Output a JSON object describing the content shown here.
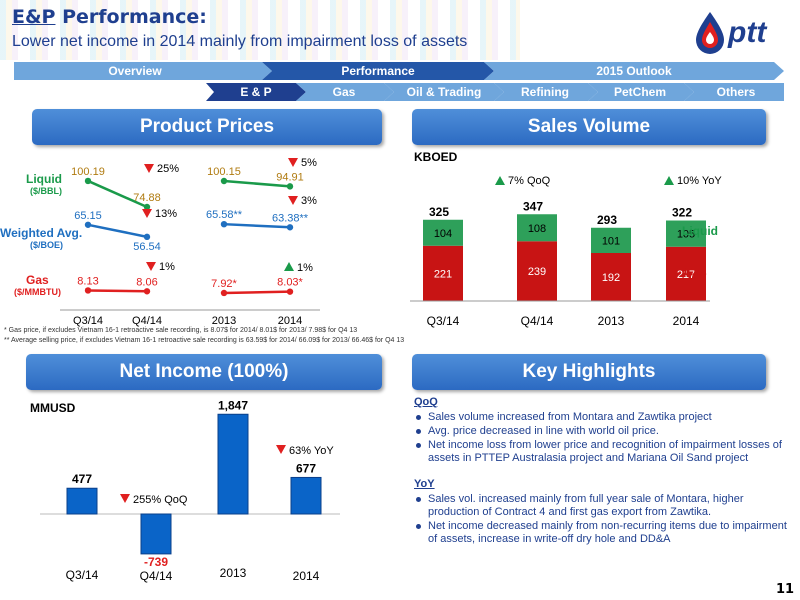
{
  "header": {
    "title_prefix": "E&P",
    "title_rest": " Performance:",
    "subtitle": "Lower net income in 2014 mainly from impairment loss of assets",
    "logo_text": "ptt"
  },
  "nav_top": [
    "Overview",
    "Performance",
    "2015 Outlook"
  ],
  "nav_sub": [
    "E & P",
    "Gas",
    "Oil & Trading",
    "Refining",
    "PetChem",
    "Others"
  ],
  "sections": {
    "product_prices": "Product Prices",
    "sales_volume": "Sales Volume",
    "net_income": "Net Income (100%)",
    "key_highlights": "Key Highlights"
  },
  "colors": {
    "liquid": "#1a9a4a",
    "weighted": "#1f6fc0",
    "gas": "#e02020",
    "bar_green": "#2ea05a",
    "bar_red": "#c81414",
    "bar_blue": "#0a64c8"
  },
  "chart_data": [
    {
      "type": "line",
      "categories": [
        "Q3/14",
        "Q4/14",
        "2013",
        "2014"
      ],
      "series": [
        {
          "name": "Liquid ($/BBL)",
          "values": [
            100.19,
            74.88,
            100.15,
            94.91
          ],
          "labels": [
            "100.19",
            "74.88",
            "100.15",
            "94.91"
          ]
        },
        {
          "name": "Weighted Avg. ($/BOE)",
          "values": [
            65.15,
            56.54,
            65.58,
            63.38
          ],
          "labels": [
            "65.15",
            "56.54",
            "65.58**",
            "63.38**"
          ]
        },
        {
          "name": "Gas ($/MMBTU)",
          "values": [
            8.13,
            8.06,
            7.92,
            8.03
          ],
          "labels": [
            "8.13",
            "8.06",
            "7.92*",
            "8.03*"
          ]
        }
      ],
      "annotations": [
        "25%",
        "13%",
        "1%",
        "5%",
        "3%",
        "1%"
      ],
      "footnotes": [
        "* Gas price, if excludes Vietnam 16-1 retroactive sale recording, is 8.07$ for 2014/ 8.01$ for 2013/ 7.98$ for Q4 13",
        "** Average selling price, if excludes Vietnam 16-1 retroactive sale recording is 63.59$ for 2014/ 66.09$ for 2013/ 66.46$ for Q4 13"
      ]
    },
    {
      "type": "bar",
      "ylabel": "KBOED",
      "categories": [
        "Q3/14",
        "Q4/14",
        "2013",
        "2014"
      ],
      "series": [
        {
          "name": "Gas",
          "values": [
            221,
            239,
            192,
            217
          ]
        },
        {
          "name": "Liquid",
          "values": [
            104,
            108,
            101,
            105
          ]
        }
      ],
      "totals": [
        325,
        347,
        293,
        322
      ],
      "annotations": [
        "7% QoQ",
        "10% YoY"
      ]
    },
    {
      "type": "bar",
      "ylabel": "MMUSD",
      "categories": [
        "Q3/14",
        "Q4/14",
        "2013",
        "2014"
      ],
      "values": [
        477,
        -739,
        1847,
        677
      ],
      "value_labels": [
        "477",
        "-739",
        "1,847",
        "677"
      ],
      "annotations": [
        "255% QoQ",
        "63% YoY"
      ]
    }
  ],
  "highlights": {
    "qoq_title": "QoQ",
    "qoq": [
      "Sales volume increased from Montara and Zawtika project",
      "Avg. price decreased  in line with world oil price.",
      "Net income loss from lower price and recognition of impairment losses of assets in PTTEP Australasia project and Mariana Oil Sand project"
    ],
    "yoy_title": "YoY",
    "yoy": [
      "Sales vol. increased mainly from full year sale of Montara,  higher production of Contract 4 and first gas export from Zawtika.",
      "Net income decreased mainly from non-recurring items due to impairment of assets, increase in write-off dry hole and DD&A"
    ]
  },
  "page_number": "11"
}
